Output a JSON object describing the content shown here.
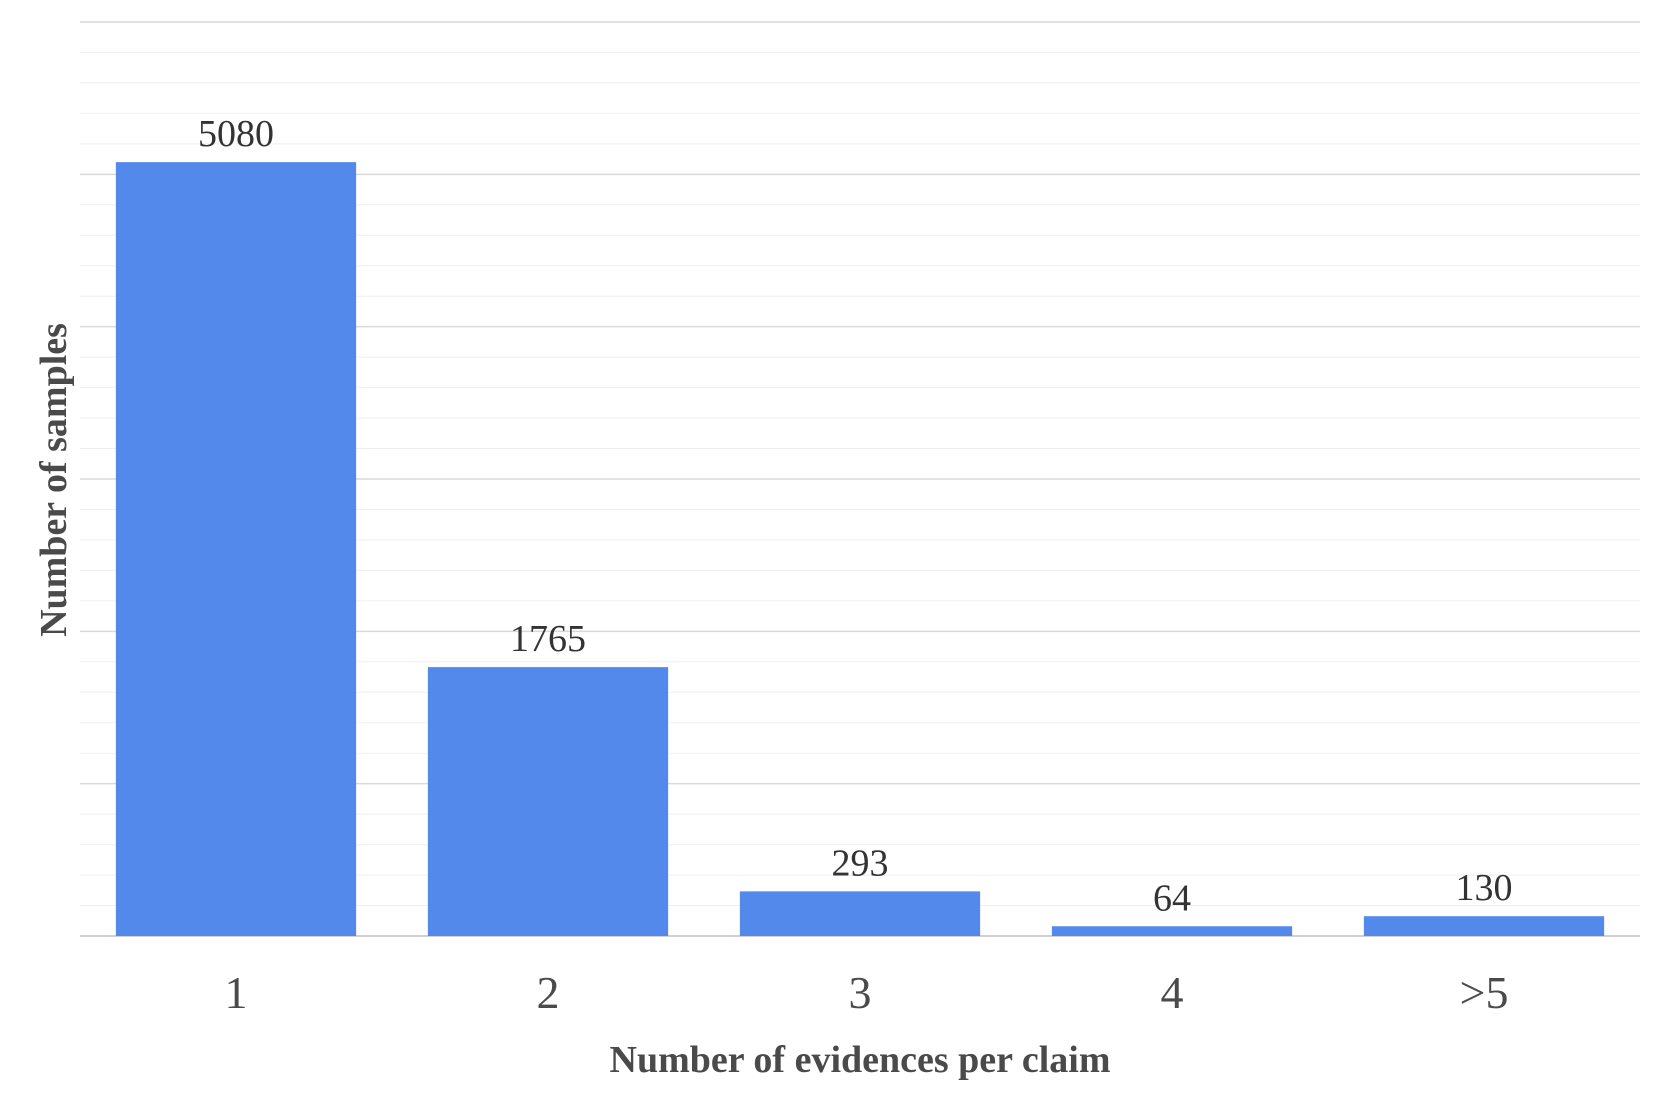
{
  "chart_data": {
    "type": "bar",
    "categories": [
      "1",
      "2",
      "3",
      "4",
      ">5"
    ],
    "values": [
      5080,
      1765,
      293,
      64,
      130
    ],
    "data_labels": [
      "5080",
      "1765",
      "293",
      "64",
      "130"
    ],
    "title": "",
    "xlabel": "Number of evidences per claim",
    "ylabel": "Number of samples",
    "ylim": [
      0,
      6000
    ],
    "grid": true,
    "legend": "none",
    "colors": {
      "bar": "#5489ec",
      "major_grid": "#d9d9d9",
      "minor_grid": "#efefef"
    }
  }
}
